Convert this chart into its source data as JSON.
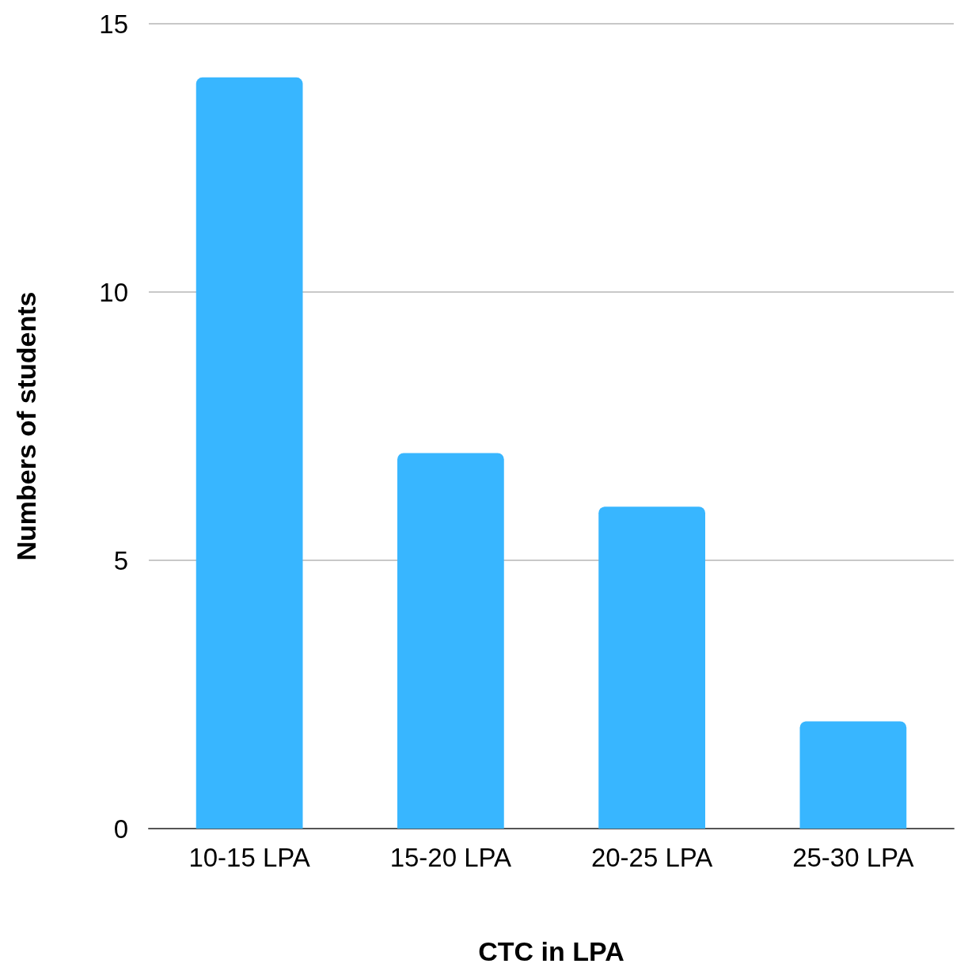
{
  "chart_data": {
    "type": "bar",
    "xlabel": "CTC in LPA",
    "ylabel": "Numbers of students",
    "categories": [
      "10-15 LPA",
      "15-20 LPA",
      "20-25 LPA",
      "25-30 LPA"
    ],
    "values": [
      14,
      7,
      6,
      2
    ],
    "color": "#38b6ff",
    "ylim": [
      0,
      15
    ],
    "yticks": [
      0,
      5,
      10,
      15
    ],
    "grid": "y"
  }
}
